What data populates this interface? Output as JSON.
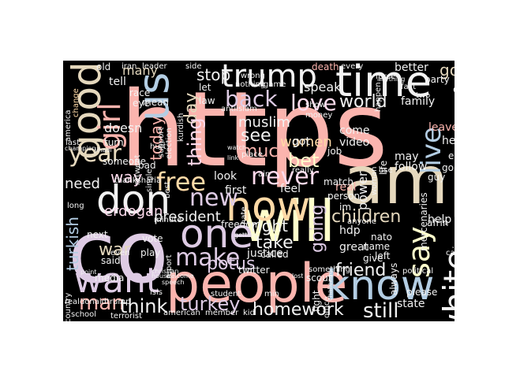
{
  "palette": {
    "pink": "#FBB4AE",
    "blue": "#B3CDE3",
    "green": "#CCEBC5",
    "purple": "#DECBE4",
    "orange": "#FED9A6",
    "yellow": "#FFFFCC",
    "tan": "#E5D8BD",
    "rose": "#FDDAEC",
    "gray": "#F2F2F2"
  },
  "words": [
    {
      "text": "https",
      "color": "pink"
    },
    {
      "text": "amp",
      "color": "tan"
    },
    {
      "text": "co",
      "color": "purple"
    },
    {
      "text": "will",
      "color": "yellow"
    },
    {
      "text": "people",
      "color": "pink"
    },
    {
      "text": "know",
      "color": "blue"
    },
    {
      "text": "time",
      "color": "gray"
    },
    {
      "text": "trump",
      "color": "gray"
    },
    {
      "text": "good",
      "color": "tan"
    },
    {
      "text": "us",
      "color": "blue"
    },
    {
      "text": "girl",
      "color": "pink"
    },
    {
      "text": "don",
      "color": "gray"
    },
    {
      "text": "now",
      "color": "orange"
    },
    {
      "text": "one",
      "color": "purple"
    },
    {
      "text": "want",
      "color": "purple"
    },
    {
      "text": "say",
      "color": "yellow"
    },
    {
      "text": "white",
      "color": "gray"
    },
    {
      "text": "live",
      "color": "blue"
    },
    {
      "text": "free",
      "color": "orange"
    },
    {
      "text": "new",
      "color": "purple"
    },
    {
      "text": "year",
      "color": "tan"
    },
    {
      "text": "never",
      "color": "rose"
    },
    {
      "text": "love",
      "color": "rose"
    },
    {
      "text": "back",
      "color": "purple"
    },
    {
      "text": "make",
      "color": "purple"
    },
    {
      "text": "turkey",
      "color": "purple"
    },
    {
      "text": "man",
      "color": "pink"
    },
    {
      "text": "think",
      "color": "gray"
    },
    {
      "text": "homework",
      "color": "gray"
    },
    {
      "text": "still",
      "color": "gray"
    },
    {
      "text": "friend",
      "color": "gray"
    },
    {
      "text": "children",
      "color": "tan"
    },
    {
      "text": "world",
      "color": "gray"
    },
    {
      "text": "turkish",
      "color": "blue"
    },
    {
      "text": "war",
      "color": "tan"
    },
    {
      "text": "way",
      "color": "rose"
    },
    {
      "text": "need",
      "color": "gray"
    },
    {
      "text": "erdogan",
      "color": "rose"
    },
    {
      "text": "president",
      "color": "gray"
    },
    {
      "text": "take",
      "color": "gray"
    },
    {
      "text": "potus",
      "color": "purple"
    },
    {
      "text": "right",
      "color": "gray"
    },
    {
      "text": "going",
      "color": "purple"
    },
    {
      "text": "bet",
      "color": "yellow"
    },
    {
      "text": "see",
      "color": "gray"
    },
    {
      "text": "much",
      "color": "pink"
    },
    {
      "text": "muslim",
      "color": "gray"
    },
    {
      "text": "women",
      "color": "orange"
    },
    {
      "text": "stop",
      "color": "gray"
    },
    {
      "text": "many",
      "color": "tan"
    },
    {
      "text": "today",
      "color": "pink"
    },
    {
      "text": "day",
      "color": "tan"
    },
    {
      "text": "thing",
      "color": "rose"
    },
    {
      "text": "power",
      "color": "gray"
    },
    {
      "text": "family",
      "color": "gray"
    },
    {
      "text": "call",
      "color": "gray"
    },
    {
      "text": "god",
      "color": "tan"
    },
    {
      "text": "leave",
      "color": "pink"
    },
    {
      "text": "doesn",
      "color": "gray"
    },
    {
      "text": "tell",
      "color": "gray"
    },
    {
      "text": "look",
      "color": "gray"
    },
    {
      "text": "first",
      "color": "gray"
    },
    {
      "text": "feel",
      "color": "gray"
    },
    {
      "text": "help",
      "color": "gray"
    },
    {
      "text": "speak",
      "color": "gray"
    },
    {
      "text": "real",
      "color": "pink"
    },
    {
      "text": "hdp",
      "color": "gray"
    },
    {
      "text": "said",
      "color": "gray"
    },
    {
      "text": "vote",
      "color": "gray"
    },
    {
      "text": "even",
      "color": "gray"
    },
    {
      "text": "play",
      "color": "gray"
    },
    {
      "text": "media",
      "color": "gray"
    },
    {
      "text": "justice",
      "color": "gray"
    },
    {
      "text": "twitter",
      "color": "gray"
    },
    {
      "text": "called",
      "color": "gray"
    },
    {
      "text": "state",
      "color": "gray"
    },
    {
      "text": "please",
      "color": "gray"
    },
    {
      "text": "scout",
      "color": "gray"
    },
    {
      "text": "school",
      "color": "gray"
    },
    {
      "text": "american",
      "color": "gray"
    },
    {
      "text": "member",
      "color": "gray"
    },
    {
      "text": "terrorist",
      "color": "gray"
    },
    {
      "text": "country",
      "color": "gray"
    },
    {
      "text": "old",
      "color": "gray"
    },
    {
      "text": "iran",
      "color": "gray"
    },
    {
      "text": "leader",
      "color": "gray"
    },
    {
      "text": "side",
      "color": "gray"
    },
    {
      "text": "let",
      "color": "gray"
    },
    {
      "text": "death",
      "color": "pink"
    },
    {
      "text": "every",
      "color": "gray"
    },
    {
      "text": "better",
      "color": "gray"
    },
    {
      "text": "party",
      "color": "gray"
    },
    {
      "text": "force",
      "color": "gray"
    },
    {
      "text": "happen",
      "color": "gray"
    },
    {
      "text": "fact",
      "color": "gray"
    },
    {
      "text": "change",
      "color": "orange"
    },
    {
      "text": "america",
      "color": "gray"
    },
    {
      "text": "race",
      "color": "gray"
    },
    {
      "text": "mean",
      "color": "gray"
    },
    {
      "text": "eye",
      "color": "gray"
    },
    {
      "text": "law",
      "color": "gray"
    },
    {
      "text": "antiislam",
      "color": "gray"
    },
    {
      "text": "nothing",
      "color": "gray"
    },
    {
      "text": "game",
      "color": "gray"
    },
    {
      "text": "show",
      "color": "gray"
    },
    {
      "text": "money",
      "color": "gray"
    },
    {
      "text": "kurdish",
      "color": "gray"
    },
    {
      "text": "election",
      "color": "gray"
    },
    {
      "text": "support",
      "color": "gray"
    },
    {
      "text": "turn",
      "color": "gray"
    },
    {
      "text": "retweet",
      "color": "gray"
    },
    {
      "text": "single",
      "color": "gray"
    },
    {
      "text": "someone",
      "color": "gray"
    },
    {
      "text": "hurt",
      "color": "gray"
    },
    {
      "text": "bad",
      "color": "gray"
    },
    {
      "text": "thanksharia",
      "color": "gray"
    },
    {
      "text": "come",
      "color": "gray"
    },
    {
      "text": "video",
      "color": "gray"
    },
    {
      "text": "job",
      "color": "gray"
    },
    {
      "text": "heart",
      "color": "gray"
    },
    {
      "text": "may",
      "color": "gray"
    },
    {
      "text": "follow",
      "color": "gray"
    },
    {
      "text": "end",
      "color": "gray"
    },
    {
      "text": "gonna",
      "color": "gray"
    },
    {
      "text": "guy",
      "color": "gray"
    },
    {
      "text": "next",
      "color": "gray"
    },
    {
      "text": "minute",
      "color": "gray"
    },
    {
      "text": "report",
      "color": "gray"
    },
    {
      "text": "mercenaries",
      "color": "gray"
    },
    {
      "text": "afrin",
      "color": "gray"
    },
    {
      "text": "syria",
      "color": "gray"
    },
    {
      "text": "great",
      "color": "gray"
    },
    {
      "text": "nato",
      "color": "gray"
    },
    {
      "text": "always",
      "color": "gray"
    },
    {
      "text": "give",
      "color": "gray"
    },
    {
      "text": "name",
      "color": "gray"
    },
    {
      "text": "left",
      "color": "gray"
    },
    {
      "text": "something",
      "color": "gray"
    },
    {
      "text": "fight",
      "color": "gray"
    },
    {
      "text": "office",
      "color": "gray"
    },
    {
      "text": "min",
      "color": "gray"
    },
    {
      "text": "kid",
      "color": "gray"
    },
    {
      "text": "student",
      "color": "gray"
    },
    {
      "text": "freedom",
      "color": "gray"
    },
    {
      "text": "place",
      "color": "gray"
    },
    {
      "text": "got",
      "color": "gray"
    },
    {
      "text": "really",
      "color": "gray"
    },
    {
      "text": "match",
      "color": "gray"
    },
    {
      "text": "person",
      "color": "gray"
    },
    {
      "text": "im",
      "color": "gray"
    },
    {
      "text": "life",
      "color": "gray"
    },
    {
      "text": "political",
      "color": "gray"
    },
    {
      "text": "realdonaldtrump",
      "color": "gray"
    },
    {
      "text": "last",
      "color": "gray"
    },
    {
      "text": "long",
      "color": "gray"
    },
    {
      "text": "isis",
      "color": "gray"
    },
    {
      "text": "best",
      "color": "gray"
    },
    {
      "text": "hate",
      "color": "gray"
    },
    {
      "text": "anyone",
      "color": "gray"
    },
    {
      "text": "ain",
      "color": "gray"
    },
    {
      "text": "wrong",
      "color": "gray"
    },
    {
      "text": "two",
      "color": "gray"
    },
    {
      "text": "use",
      "color": "gray"
    },
    {
      "text": "calling",
      "color": "gray"
    },
    {
      "text": "point",
      "color": "gray"
    },
    {
      "text": "champion",
      "color": "gray"
    },
    {
      "text": "christian",
      "color": "gray"
    },
    {
      "text": "jihadi",
      "color": "gray"
    },
    {
      "text": "speech",
      "color": "gray"
    },
    {
      "text": "anything",
      "color": "gray"
    },
    {
      "text": "challenge",
      "color": "gray"
    },
    {
      "text": "woman",
      "color": "gray"
    },
    {
      "text": "getting",
      "color": "gray"
    },
    {
      "text": "house",
      "color": "gray"
    },
    {
      "text": "welcome",
      "color": "gray"
    },
    {
      "text": "lost",
      "color": "gray"
    },
    {
      "text": "watch",
      "color": "gray"
    },
    {
      "text": "link",
      "color": "gray"
    },
    {
      "text": "case",
      "color": "gray"
    }
  ]
}
